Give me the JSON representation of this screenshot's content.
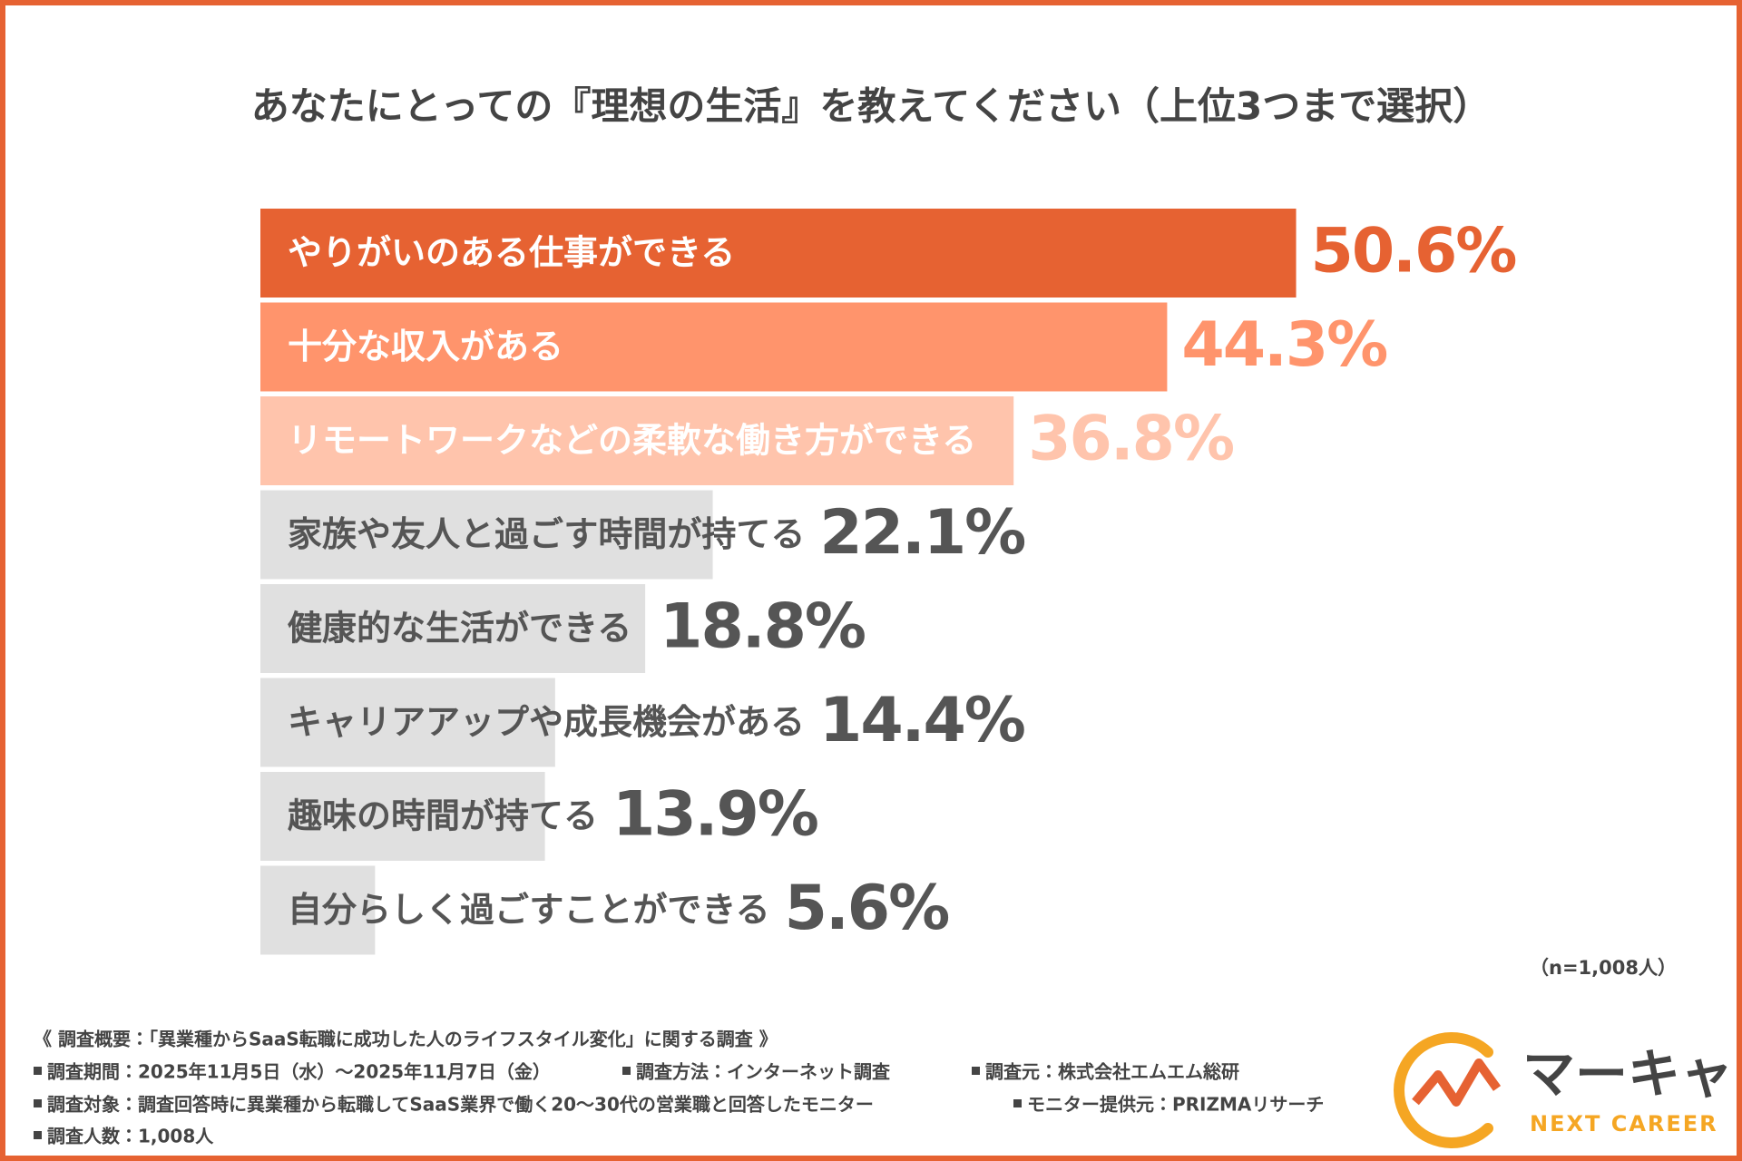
{
  "chart_data": {
    "type": "bar",
    "orientation": "horizontal",
    "title": "あなたにとっての『理想の生活』を教えてください（上位3つまで選択）",
    "categories": [
      "やりがいのある仕事ができる",
      "十分な収入がある",
      "リモートワークなどの柔軟な働き方ができる",
      "家族や友人と過ごす時間が持てる",
      "健康的な生活ができる",
      "キャリアアップや成長機会がある",
      "趣味の時間が持てる",
      "自分らしく過ごすことができる"
    ],
    "values": [
      50.6,
      44.3,
      36.8,
      22.1,
      18.8,
      14.4,
      13.9,
      5.6
    ],
    "value_labels": [
      "50.6%",
      "44.3%",
      "36.8%",
      "22.1%",
      "18.8%",
      "14.4%",
      "13.9%",
      "5.6%"
    ],
    "colors": [
      "#e66232",
      "#ff946c",
      "#ffc4ac",
      "#e0e0e0",
      "#e0e0e0",
      "#e0e0e0",
      "#e0e0e0",
      "#e0e0e0"
    ],
    "value_label_colors": [
      "#e66232",
      "#ff946c",
      "#ffc4ac",
      "#555555",
      "#555555",
      "#555555",
      "#555555",
      "#555555"
    ],
    "category_label_colors": [
      "#ffffff",
      "#ffffff",
      "#ffffff",
      "#555555",
      "#555555",
      "#555555",
      "#555555",
      "#555555"
    ],
    "note": "（n=1,008人）"
  },
  "footer": {
    "heading": "《 調査概要：「異業種からSaaS転職に成功した人のライフスタイル変化」に関する調査 》",
    "items": [
      "調査期間：2025年11月5日（水）～2025年11月7日（金）",
      "調査方法：インターネット調査",
      "調査元：株式会社エムエム総研",
      "調査対象：調査回答時に異業種から転職してSaaS業界で働く20～30代の営業職と回答したモニター",
      "モニター提供元：PRIZMAリサーチ",
      "調査人数：1,008人"
    ]
  },
  "logo": {
    "name": "マーキャリ",
    "tagline": "NEXT CAREER"
  }
}
